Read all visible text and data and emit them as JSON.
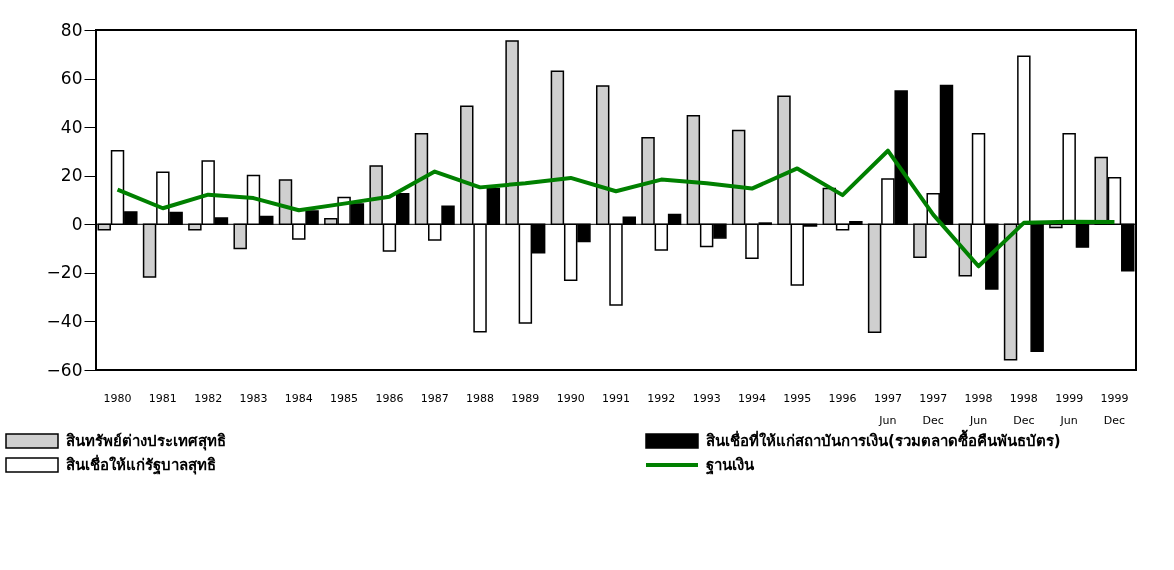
{
  "chart_data": {
    "type": "bar",
    "categories": [
      "1980",
      "1981",
      "1982",
      "1983",
      "1984",
      "1985",
      "1986",
      "1987",
      "1988",
      "1989",
      "1990",
      "1991",
      "1992",
      "1993",
      "1994",
      "1995",
      "1996",
      "1997\nJun",
      "1997\nDec",
      "1998\nJun",
      "1998\nDec",
      "1999\nJun",
      "1999\nDec"
    ],
    "series": [
      {
        "name": "สินทรัพย์ต่างประเทศสุทธิ",
        "color": "#cfcfcf",
        "values": [
          -2.3,
          -21.7,
          -2.3,
          -10,
          18.2,
          2.3,
          24,
          37.3,
          48.6,
          75.5,
          63,
          56.9,
          35.6,
          44.7,
          38.6,
          52.7,
          14.7,
          -44.5,
          -13.6,
          -21.2,
          -55.8,
          -1.3,
          27.5
        ]
      },
      {
        "name": "สินเชื่อให้แก่รัฐบาลสุทธิ",
        "color": "#ffffff",
        "values": [
          30.3,
          21.4,
          26.1,
          20.1,
          -6.1,
          11,
          -11,
          -6.5,
          -44.2,
          -40.6,
          -23,
          -33.2,
          -10.6,
          -9.1,
          -14,
          -25,
          -2.2,
          18.6,
          12.6,
          37.3,
          69.2,
          37.3,
          19.2
        ]
      },
      {
        "name": "สินเชื่อที่ให้แก่สถาบันการเงิน(รวมตลาดซื้อคืนพันธบัตร)",
        "color": "#000000",
        "values": [
          5.1,
          4.9,
          2.6,
          3.2,
          5.5,
          8.4,
          12.6,
          7.4,
          14.7,
          -11.7,
          -7.1,
          2.9,
          4,
          -5.6,
          0.5,
          -0.7,
          1,
          54.9,
          57.1,
          -26.6,
          -52.3,
          -9.4,
          -19.1
        ]
      },
      {
        "name": "ฐานเงิน",
        "type": "line",
        "color": "#008000",
        "values": [
          14.3,
          6.6,
          12.2,
          10.8,
          5.8,
          8.5,
          11.3,
          21.7,
          15.2,
          16.9,
          19.1,
          13.6,
          18.4,
          16.9,
          14.7,
          23,
          12,
          30.3,
          4,
          -17.3,
          0.6,
          1,
          0.9
        ]
      }
    ],
    "ylim": [
      -60,
      80
    ],
    "yticks": [
      -60,
      -40,
      -20,
      0,
      20,
      40,
      60,
      80
    ],
    "ref_lines": [
      {
        "axis": "y",
        "value": 0,
        "color": "#000000"
      }
    ],
    "grid": false,
    "legend": "bottom"
  }
}
